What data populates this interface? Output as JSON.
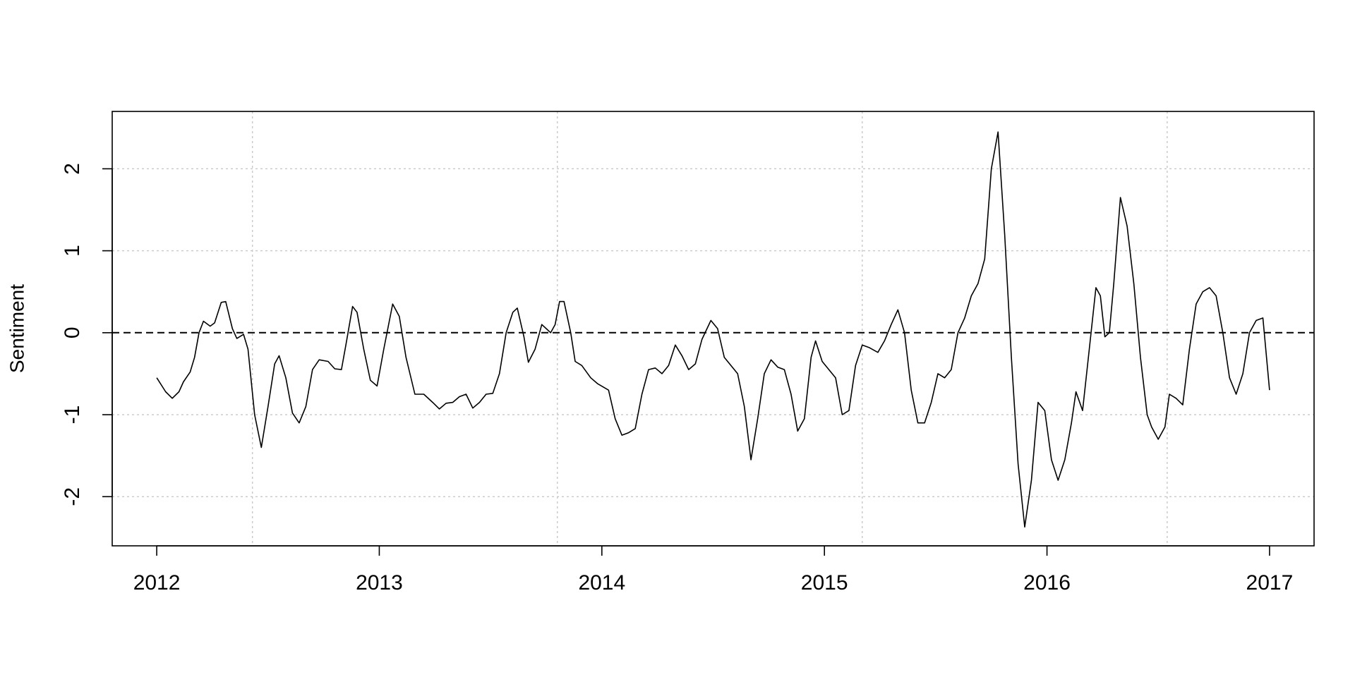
{
  "chart_data": {
    "type": "line",
    "title": "",
    "xlabel": "",
    "ylabel": "Sentiment",
    "xlim": [
      2011.8,
      2017.2
    ],
    "ylim": [
      -2.6,
      2.7
    ],
    "x_ticks": [
      2012,
      2013,
      2014,
      2015,
      2016,
      2017
    ],
    "y_ticks": [
      -2,
      -1,
      0,
      1,
      2
    ],
    "grid": true,
    "vertical_grid_at": [
      2012.43,
      2013.8,
      2015.17,
      2016.54
    ],
    "reference_line": {
      "y": 0,
      "style": "dashed"
    },
    "series": [
      {
        "color": "#000000",
        "points": [
          [
            2012.0,
            -0.55
          ],
          [
            2012.04,
            -0.72
          ],
          [
            2012.07,
            -0.8
          ],
          [
            2012.1,
            -0.72
          ],
          [
            2012.12,
            -0.6
          ],
          [
            2012.15,
            -0.48
          ],
          [
            2012.17,
            -0.3
          ],
          [
            2012.19,
            0.0
          ],
          [
            2012.21,
            0.14
          ],
          [
            2012.24,
            0.08
          ],
          [
            2012.26,
            0.12
          ],
          [
            2012.29,
            0.37
          ],
          [
            2012.31,
            0.38
          ],
          [
            2012.34,
            0.05
          ],
          [
            2012.36,
            -0.07
          ],
          [
            2012.39,
            -0.02
          ],
          [
            2012.41,
            -0.2
          ],
          [
            2012.44,
            -1.0
          ],
          [
            2012.47,
            -1.4
          ],
          [
            2012.5,
            -0.9
          ],
          [
            2012.53,
            -0.38
          ],
          [
            2012.55,
            -0.28
          ],
          [
            2012.58,
            -0.55
          ],
          [
            2012.61,
            -0.98
          ],
          [
            2012.64,
            -1.1
          ],
          [
            2012.67,
            -0.9
          ],
          [
            2012.7,
            -0.45
          ],
          [
            2012.73,
            -0.33
          ],
          [
            2012.77,
            -0.35
          ],
          [
            2012.8,
            -0.44
          ],
          [
            2012.83,
            -0.45
          ],
          [
            2012.85,
            -0.15
          ],
          [
            2012.88,
            0.32
          ],
          [
            2012.9,
            0.25
          ],
          [
            2012.93,
            -0.2
          ],
          [
            2012.96,
            -0.58
          ],
          [
            2012.99,
            -0.65
          ],
          [
            2013.02,
            -0.2
          ],
          [
            2013.06,
            0.35
          ],
          [
            2013.09,
            0.2
          ],
          [
            2013.12,
            -0.3
          ],
          [
            2013.16,
            -0.75
          ],
          [
            2013.2,
            -0.75
          ],
          [
            2013.24,
            -0.85
          ],
          [
            2013.27,
            -0.93
          ],
          [
            2013.3,
            -0.86
          ],
          [
            2013.33,
            -0.85
          ],
          [
            2013.36,
            -0.78
          ],
          [
            2013.39,
            -0.75
          ],
          [
            2013.42,
            -0.92
          ],
          [
            2013.45,
            -0.85
          ],
          [
            2013.48,
            -0.75
          ],
          [
            2013.51,
            -0.74
          ],
          [
            2013.54,
            -0.5
          ],
          [
            2013.57,
            0.0
          ],
          [
            2013.6,
            0.25
          ],
          [
            2013.62,
            0.3
          ],
          [
            2013.65,
            -0.05
          ],
          [
            2013.67,
            -0.36
          ],
          [
            2013.7,
            -0.2
          ],
          [
            2013.73,
            0.1
          ],
          [
            2013.75,
            0.05
          ],
          [
            2013.77,
            0.0
          ],
          [
            2013.79,
            0.1
          ],
          [
            2013.81,
            0.38
          ],
          [
            2013.83,
            0.38
          ],
          [
            2013.86,
            0.0
          ],
          [
            2013.88,
            -0.35
          ],
          [
            2013.91,
            -0.4
          ],
          [
            2013.95,
            -0.55
          ],
          [
            2013.98,
            -0.62
          ],
          [
            2014.03,
            -0.7
          ],
          [
            2014.06,
            -1.05
          ],
          [
            2014.09,
            -1.25
          ],
          [
            2014.12,
            -1.22
          ],
          [
            2014.15,
            -1.17
          ],
          [
            2014.18,
            -0.75
          ],
          [
            2014.21,
            -0.45
          ],
          [
            2014.24,
            -0.43
          ],
          [
            2014.27,
            -0.5
          ],
          [
            2014.3,
            -0.4
          ],
          [
            2014.33,
            -0.15
          ],
          [
            2014.36,
            -0.28
          ],
          [
            2014.39,
            -0.45
          ],
          [
            2014.42,
            -0.38
          ],
          [
            2014.45,
            -0.08
          ],
          [
            2014.49,
            0.15
          ],
          [
            2014.52,
            0.05
          ],
          [
            2014.55,
            -0.3
          ],
          [
            2014.58,
            -0.4
          ],
          [
            2014.61,
            -0.5
          ],
          [
            2014.64,
            -0.9
          ],
          [
            2014.67,
            -1.55
          ],
          [
            2014.7,
            -1.05
          ],
          [
            2014.73,
            -0.5
          ],
          [
            2014.76,
            -0.33
          ],
          [
            2014.79,
            -0.42
          ],
          [
            2014.82,
            -0.45
          ],
          [
            2014.85,
            -0.75
          ],
          [
            2014.88,
            -1.2
          ],
          [
            2014.91,
            -1.05
          ],
          [
            2014.94,
            -0.3
          ],
          [
            2014.96,
            -0.1
          ],
          [
            2014.99,
            -0.35
          ],
          [
            2015.02,
            -0.45
          ],
          [
            2015.05,
            -0.55
          ],
          [
            2015.08,
            -1.0
          ],
          [
            2015.11,
            -0.95
          ],
          [
            2015.14,
            -0.4
          ],
          [
            2015.17,
            -0.15
          ],
          [
            2015.2,
            -0.18
          ],
          [
            2015.24,
            -0.24
          ],
          [
            2015.27,
            -0.1
          ],
          [
            2015.3,
            0.1
          ],
          [
            2015.33,
            0.28
          ],
          [
            2015.36,
            0.0
          ],
          [
            2015.39,
            -0.7
          ],
          [
            2015.42,
            -1.1
          ],
          [
            2015.45,
            -1.1
          ],
          [
            2015.48,
            -0.85
          ],
          [
            2015.51,
            -0.5
          ],
          [
            2015.54,
            -0.55
          ],
          [
            2015.57,
            -0.45
          ],
          [
            2015.6,
            0.0
          ],
          [
            2015.63,
            0.18
          ],
          [
            2015.66,
            0.45
          ],
          [
            2015.69,
            0.6
          ],
          [
            2015.72,
            0.9
          ],
          [
            2015.75,
            2.0
          ],
          [
            2015.78,
            2.45
          ],
          [
            2015.81,
            1.2
          ],
          [
            2015.84,
            -0.3
          ],
          [
            2015.87,
            -1.6
          ],
          [
            2015.9,
            -2.37
          ],
          [
            2015.93,
            -1.8
          ],
          [
            2015.96,
            -0.85
          ],
          [
            2015.99,
            -0.95
          ],
          [
            2016.02,
            -1.55
          ],
          [
            2016.05,
            -1.8
          ],
          [
            2016.08,
            -1.55
          ],
          [
            2016.11,
            -1.1
          ],
          [
            2016.13,
            -0.72
          ],
          [
            2016.16,
            -0.95
          ],
          [
            2016.19,
            -0.2
          ],
          [
            2016.22,
            0.55
          ],
          [
            2016.24,
            0.45
          ],
          [
            2016.26,
            -0.05
          ],
          [
            2016.28,
            0.0
          ],
          [
            2016.3,
            0.6
          ],
          [
            2016.33,
            1.65
          ],
          [
            2016.36,
            1.3
          ],
          [
            2016.39,
            0.6
          ],
          [
            2016.42,
            -0.3
          ],
          [
            2016.45,
            -1.0
          ],
          [
            2016.47,
            -1.15
          ],
          [
            2016.5,
            -1.3
          ],
          [
            2016.53,
            -1.15
          ],
          [
            2016.55,
            -0.75
          ],
          [
            2016.58,
            -0.8
          ],
          [
            2016.61,
            -0.88
          ],
          [
            2016.64,
            -0.2
          ],
          [
            2016.67,
            0.35
          ],
          [
            2016.7,
            0.5
          ],
          [
            2016.73,
            0.55
          ],
          [
            2016.76,
            0.45
          ],
          [
            2016.79,
            0.0
          ],
          [
            2016.82,
            -0.55
          ],
          [
            2016.85,
            -0.75
          ],
          [
            2016.88,
            -0.5
          ],
          [
            2016.91,
            0.0
          ],
          [
            2016.94,
            0.15
          ],
          [
            2016.97,
            0.18
          ],
          [
            2017.0,
            -0.7
          ]
        ]
      }
    ]
  }
}
